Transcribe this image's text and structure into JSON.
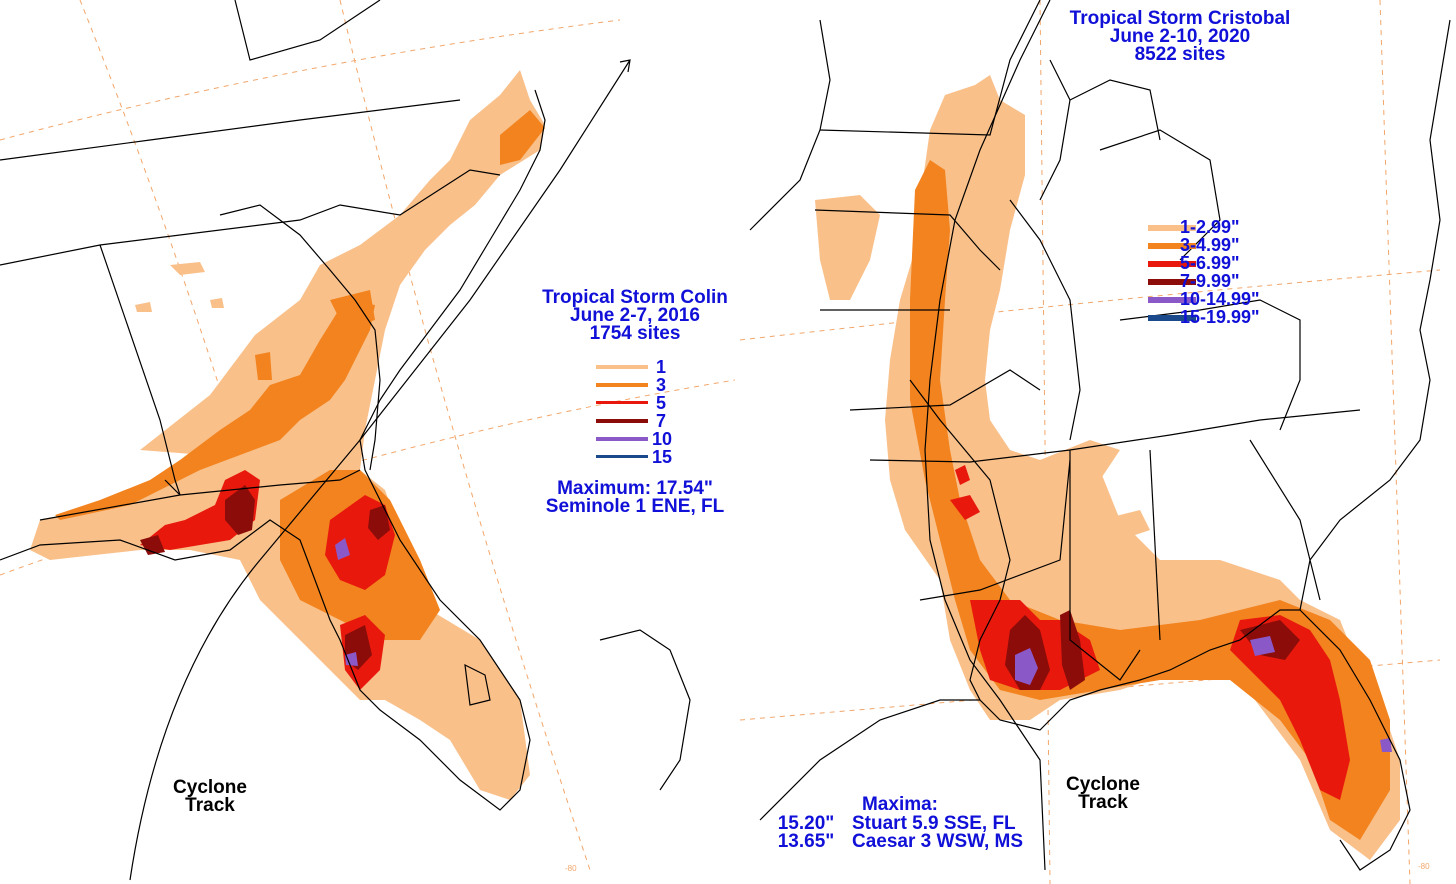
{
  "colors": {
    "c1": "#f9c08a",
    "c3": "#f2831e",
    "c5": "#e8190c",
    "c7": "#8c0c0a",
    "c10": "#8b58c8",
    "c15": "#1a4a8c",
    "title_text": "#1010d8",
    "track_text": "#000000",
    "boundary": "#000000",
    "grid": "#f2a66a"
  },
  "left_map": {
    "title": "Tropical Storm Colin",
    "dates": "June 2-7, 2016",
    "sites": "1754 sites",
    "legend": [
      {
        "label": "1",
        "color_key": "c1"
      },
      {
        "label": "3",
        "color_key": "c3"
      },
      {
        "label": "5",
        "color_key": "c5"
      },
      {
        "label": "7",
        "color_key": "c7"
      },
      {
        "label": "10",
        "color_key": "c10"
      },
      {
        "label": "15",
        "color_key": "c15"
      }
    ],
    "maximum_line": "Maximum:  17.54\"",
    "maximum_location": "Seminole 1 ENE, FL",
    "track_label_1": "Cyclone",
    "track_label_2": "Track",
    "corner_label": "-80"
  },
  "right_map": {
    "title": "Tropical Storm Cristobal",
    "dates": "June 2-10, 2020",
    "sites": "8522 sites",
    "legend": [
      {
        "label": "1-2.99\"",
        "color_key": "c1"
      },
      {
        "label": "3-4.99\"",
        "color_key": "c3"
      },
      {
        "label": "5-6.99\"",
        "color_key": "c5"
      },
      {
        "label": "7-9.99\"",
        "color_key": "c7"
      },
      {
        "label": "10-14.99\"",
        "color_key": "c10"
      },
      {
        "label": "15-19.99\"",
        "color_key": "c15"
      }
    ],
    "maxima_header": "Maxima:",
    "maxima": [
      {
        "value": "15.20\"",
        "location": "Stuart 5.9 SSE, FL"
      },
      {
        "value": "13.65\"",
        "location": "Caesar 3 WSW, MS"
      }
    ],
    "track_label_1": "Cyclone",
    "track_label_2": "Track",
    "corner_label": "-80"
  }
}
